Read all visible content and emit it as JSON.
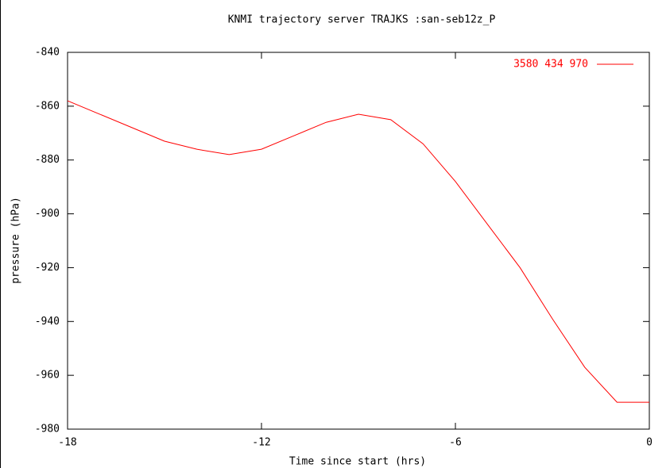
{
  "chart_data": {
    "type": "line",
    "title": "KNMI trajectory server TRAJKS :san-seb12z_P",
    "x_label": "Time since start (hrs)",
    "y_label": "pressure (hPa)",
    "x": [
      -18,
      -17,
      -16,
      -15,
      -14,
      -13,
      -12,
      -11,
      -10,
      -9,
      -8,
      -7,
      -6,
      -5,
      -4,
      -3,
      -2,
      -1,
      0
    ],
    "series": [
      {
        "name": "3580 434 970",
        "color": "#ff0000",
        "values": [
          -858,
          -863,
          -868,
          -873,
          -876,
          -878,
          -876,
          -871,
          -866,
          -863,
          -865,
          -874,
          -888,
          -904,
          -920,
          -939,
          -957,
          -970,
          -970
        ]
      }
    ],
    "xlim": [
      -18,
      0
    ],
    "xticks": [
      -18,
      -12,
      -6,
      0
    ],
    "ylim": [
      -980,
      -840
    ],
    "yticks": [
      -980,
      -960,
      -940,
      -920,
      -900,
      -880,
      -860,
      -840
    ],
    "legend": "top-right"
  }
}
